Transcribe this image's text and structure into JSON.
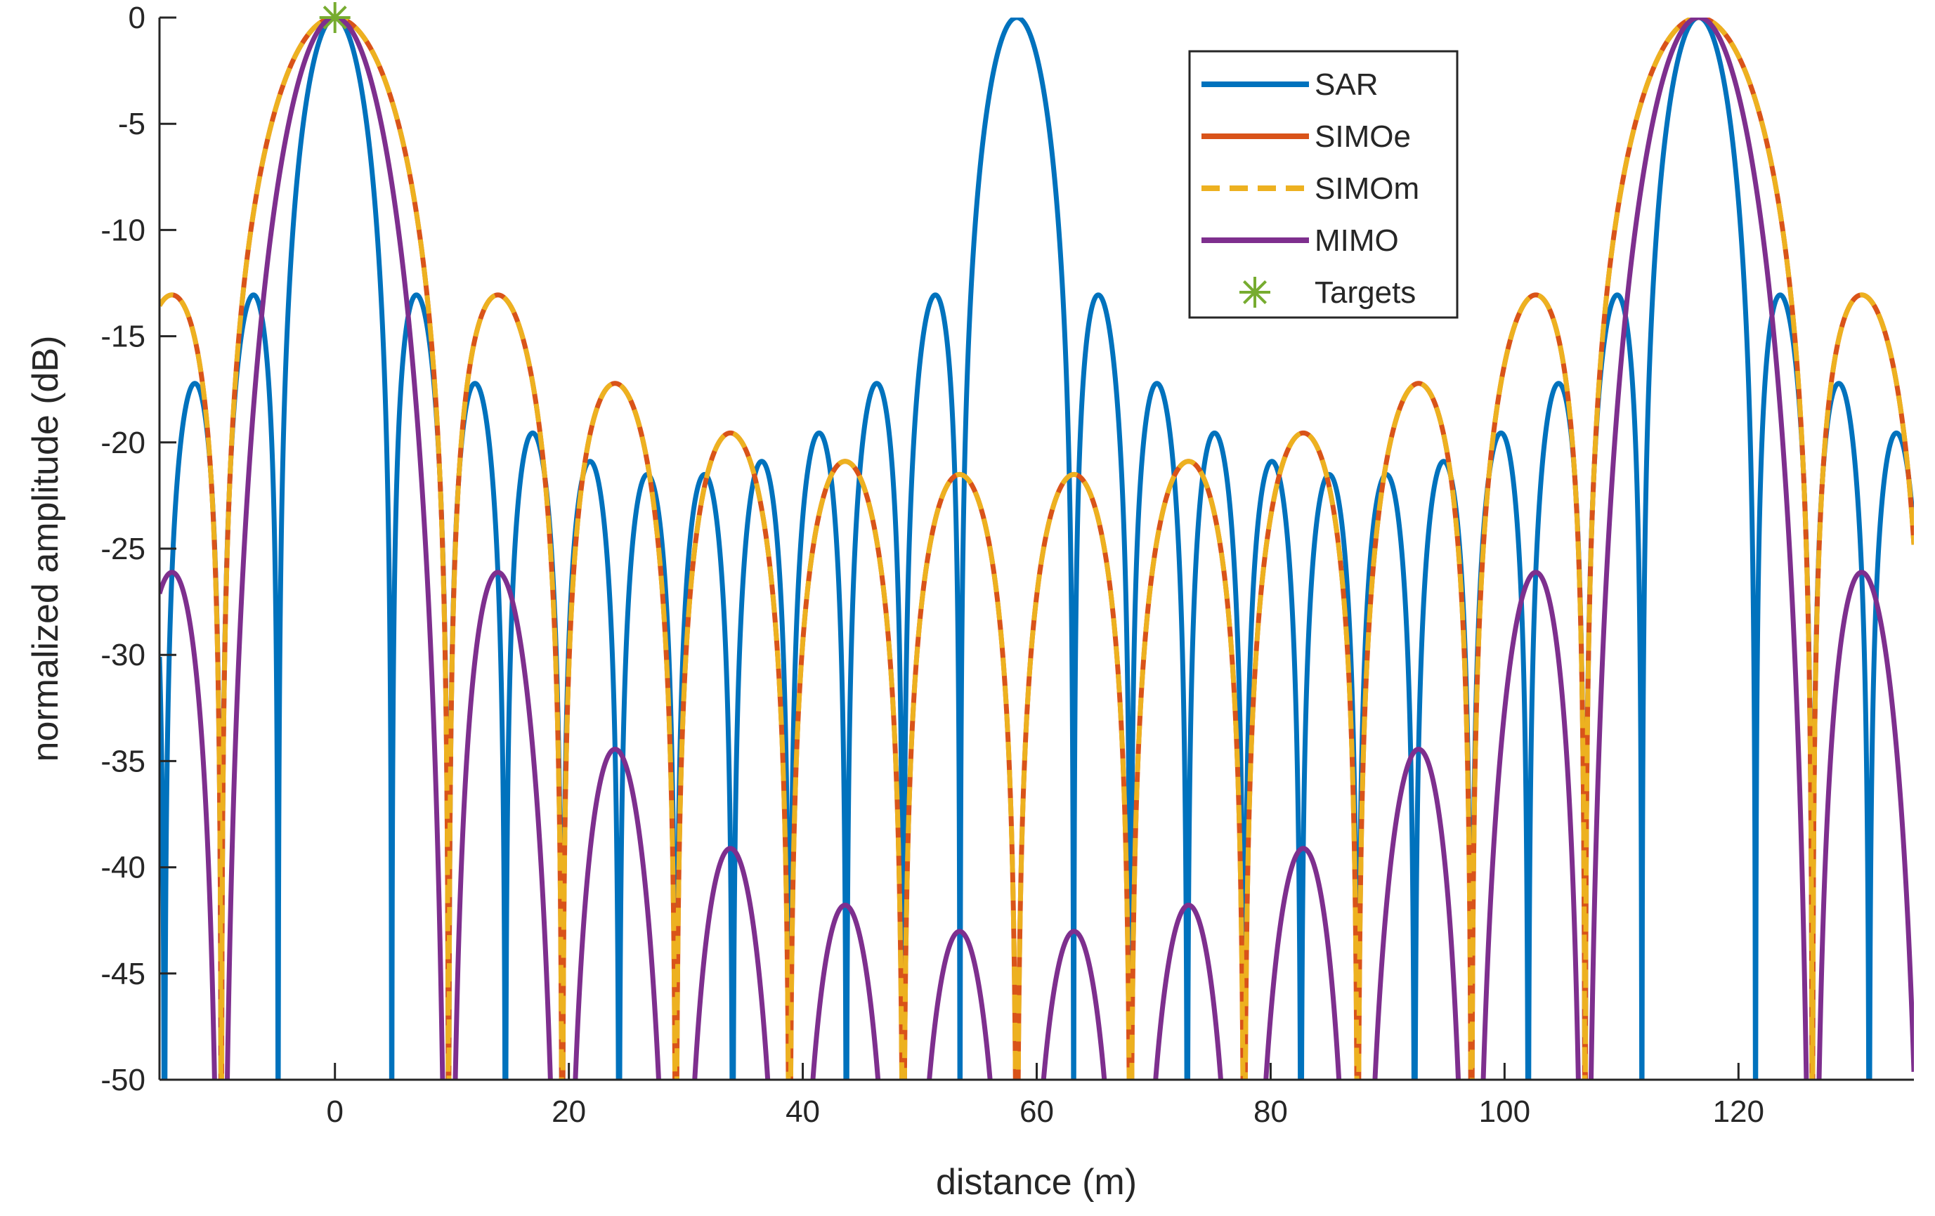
{
  "chart_data": {
    "type": "line",
    "title": "",
    "xlabel": "distance (m)",
    "ylabel": "normalized amplitude (dB)",
    "xlim": [
      -15,
      135
    ],
    "ylim": [
      -50,
      0
    ],
    "xticks": [
      0,
      20,
      40,
      60,
      80,
      100,
      120
    ],
    "yticks": [
      0,
      -5,
      -10,
      -15,
      -20,
      -25,
      -30,
      -35,
      -40,
      -45,
      -50
    ],
    "xtick_labels": [
      "0",
      "20",
      "40",
      "60",
      "80",
      "100",
      "120"
    ],
    "ytick_labels": [
      "0",
      "-5",
      "-10",
      "-15",
      "-20",
      "-25",
      "-30",
      "-35",
      "-40",
      "-45",
      "-50"
    ],
    "grid": false,
    "legend_position": "top-right",
    "series": [
      {
        "name": "SAR",
        "color": "#0072BD",
        "style": "solid",
        "model": "periodic_sinc",
        "period_m": 58.3,
        "null_spacing_m": 4.86,
        "peaks_at_m": [
          0,
          58.3,
          116.6
        ],
        "peak_db": 0
      },
      {
        "name": "SIMOe",
        "color": "#D95319",
        "style": "solid",
        "model": "periodic_sinc",
        "period_m": 116.6,
        "null_spacing_m": 9.72,
        "peaks_at_m": [
          0,
          116.6
        ],
        "peak_db": 0
      },
      {
        "name": "SIMOm",
        "color": "#EDB120",
        "style": "dashed",
        "model": "periodic_sinc",
        "period_m": 116.6,
        "null_spacing_m": 9.72,
        "peaks_at_m": [
          0,
          116.6
        ],
        "peak_db": 0
      },
      {
        "name": "MIMO",
        "color": "#7E2F8E",
        "style": "solid",
        "model": "periodic_sinc_squared",
        "period_m": 116.6,
        "null_spacing_m": 9.72,
        "peaks_at_m": [
          0,
          116.6
        ],
        "peak_db": 0
      }
    ],
    "markers": [
      {
        "name": "Targets",
        "color": "#77AC30",
        "symbol": "asterisk",
        "points": [
          {
            "x": 0,
            "y": 0
          }
        ]
      }
    ]
  }
}
